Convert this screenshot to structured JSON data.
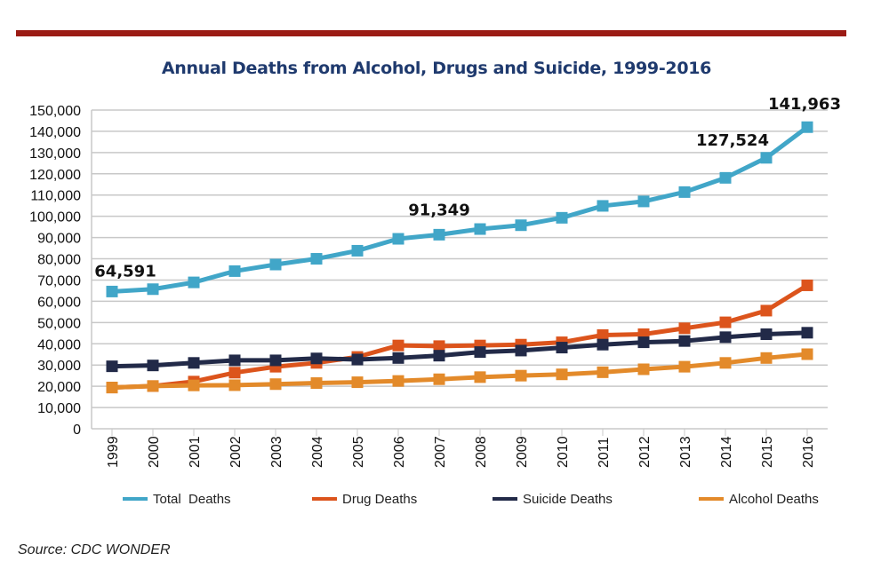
{
  "chart_data": {
    "type": "line",
    "title": "Annual Deaths from Alcohol, Drugs and Suicide, 1999-2016",
    "xlabel": "",
    "ylabel": "",
    "categories": [
      "1999",
      "2000",
      "2001",
      "2002",
      "2003",
      "2004",
      "2005",
      "2006",
      "2007",
      "2008",
      "2009",
      "2010",
      "2011",
      "2012",
      "2013",
      "2014",
      "2015",
      "2016"
    ],
    "ylim": [
      0,
      150000
    ],
    "yticks": [
      "0",
      "10,000",
      "20,000",
      "30,000",
      "40,000",
      "50,000",
      "60,000",
      "70,000",
      "80,000",
      "90,000",
      "100,000",
      "110,000",
      "120,000",
      "130,000",
      "140,000",
      "150,000"
    ],
    "grid": true,
    "legend": "bottom",
    "series": [
      {
        "name": "Total  Deaths",
        "color": "#41a6c8",
        "values": [
          64591,
          65700,
          68900,
          74200,
          77300,
          80000,
          83800,
          89400,
          91349,
          94000,
          95800,
          99300,
          104900,
          107000,
          111400,
          118100,
          127524,
          141963
        ]
      },
      {
        "name": "Drug Deaths",
        "color": "#dc541c",
        "values": [
          19400,
          20100,
          22200,
          26400,
          29200,
          31000,
          33800,
          39200,
          38900,
          39200,
          39600,
          40700,
          44100,
          44500,
          47300,
          50100,
          55600,
          67500
        ]
      },
      {
        "name": "Suicide Deaths",
        "color": "#222a48",
        "values": [
          29400,
          29800,
          31000,
          32200,
          32200,
          33100,
          32600,
          33300,
          34400,
          36100,
          36800,
          38200,
          39600,
          40700,
          41300,
          43100,
          44500,
          45200
        ]
      },
      {
        "name": "Alcohol Deaths",
        "color": "#e38a2a",
        "values": [
          19400,
          20100,
          20400,
          20500,
          21000,
          21500,
          21900,
          22500,
          23300,
          24300,
          25000,
          25600,
          26600,
          28000,
          29200,
          31000,
          33300,
          35100
        ]
      }
    ],
    "annotations": [
      {
        "series": 0,
        "index": 0,
        "text": "64,591"
      },
      {
        "series": 0,
        "index": 8,
        "text": "91,349"
      },
      {
        "series": 0,
        "index": 16,
        "text": "127,524"
      },
      {
        "series": 0,
        "index": 17,
        "text": "141,963"
      }
    ]
  },
  "source": "Source: CDC WONDER"
}
